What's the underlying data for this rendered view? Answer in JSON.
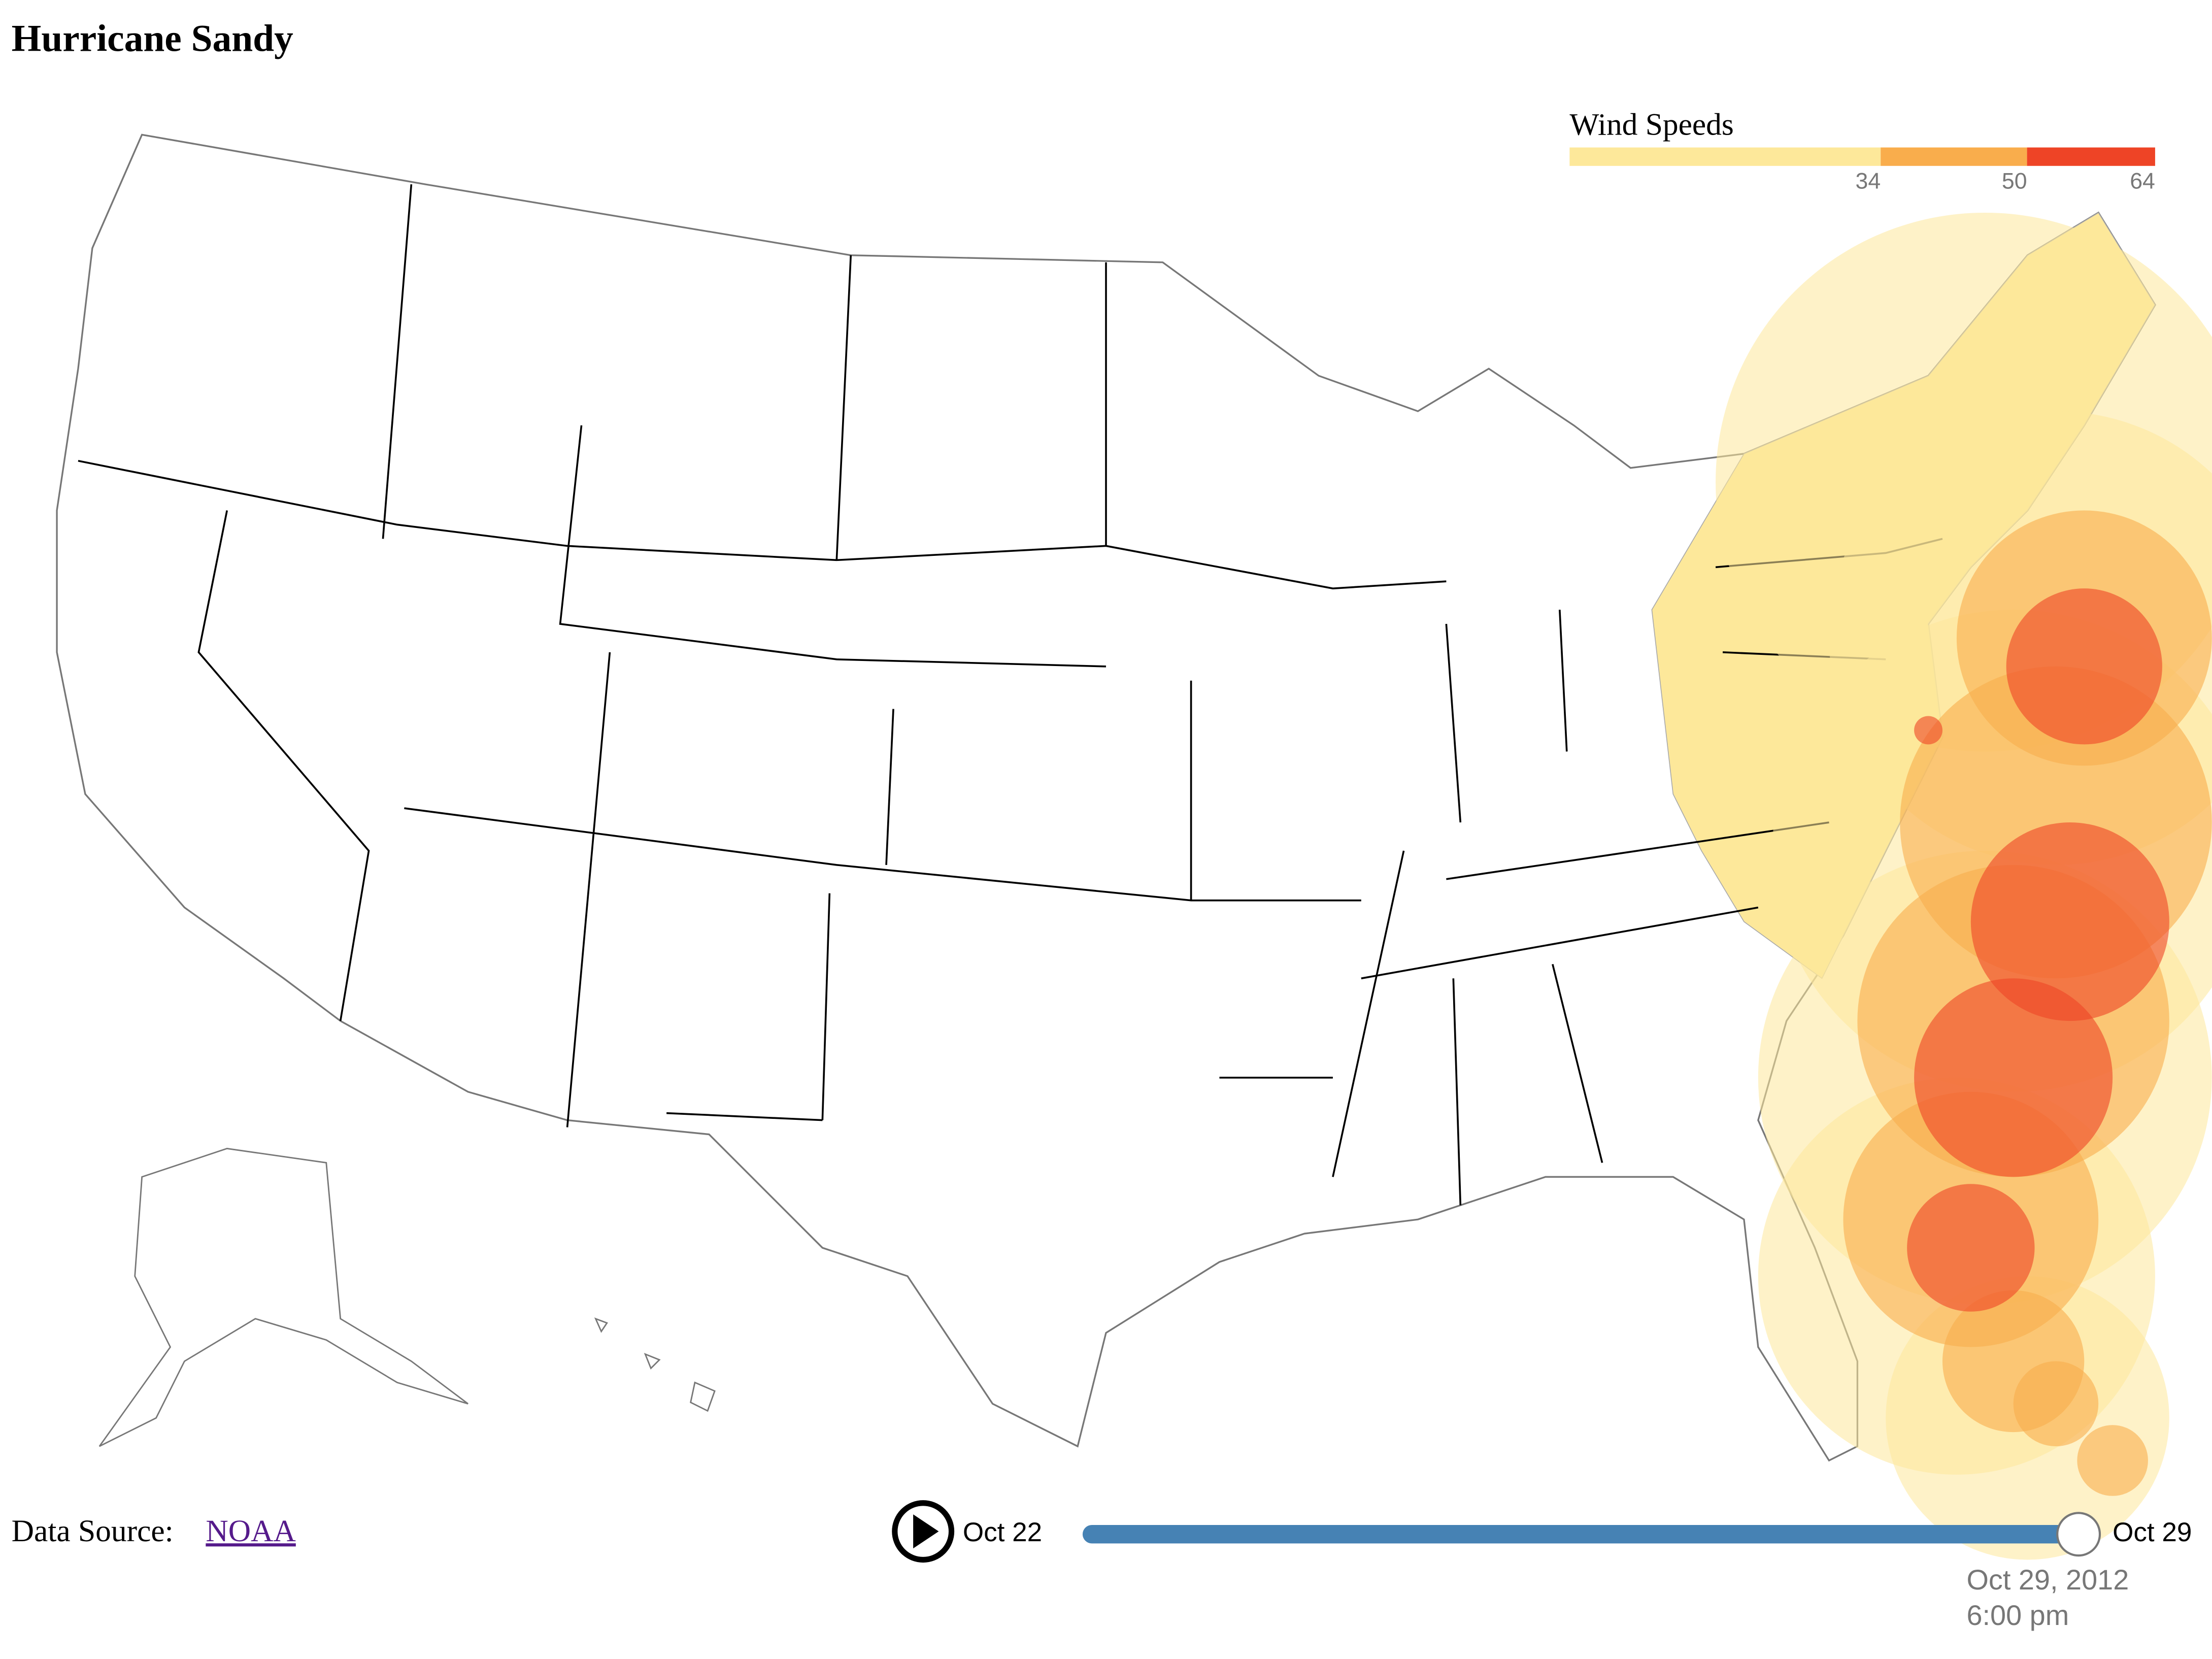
{
  "title": "Hurricane Sandy",
  "legend": {
    "title": "Wind Speeds",
    "scale": [
      0,
      64
    ],
    "thresholds": [
      34,
      50,
      64
    ],
    "colors": [
      "#fde89a",
      "#f9ad4c",
      "#ee4426"
    ]
  },
  "footer": {
    "label": "Data Source:",
    "link": "NOAA"
  },
  "slider": {
    "start": "Oct 22",
    "end": "Oct 29",
    "current_date": "Oct 29, 2012",
    "current_time": "6:00 pm"
  }
}
